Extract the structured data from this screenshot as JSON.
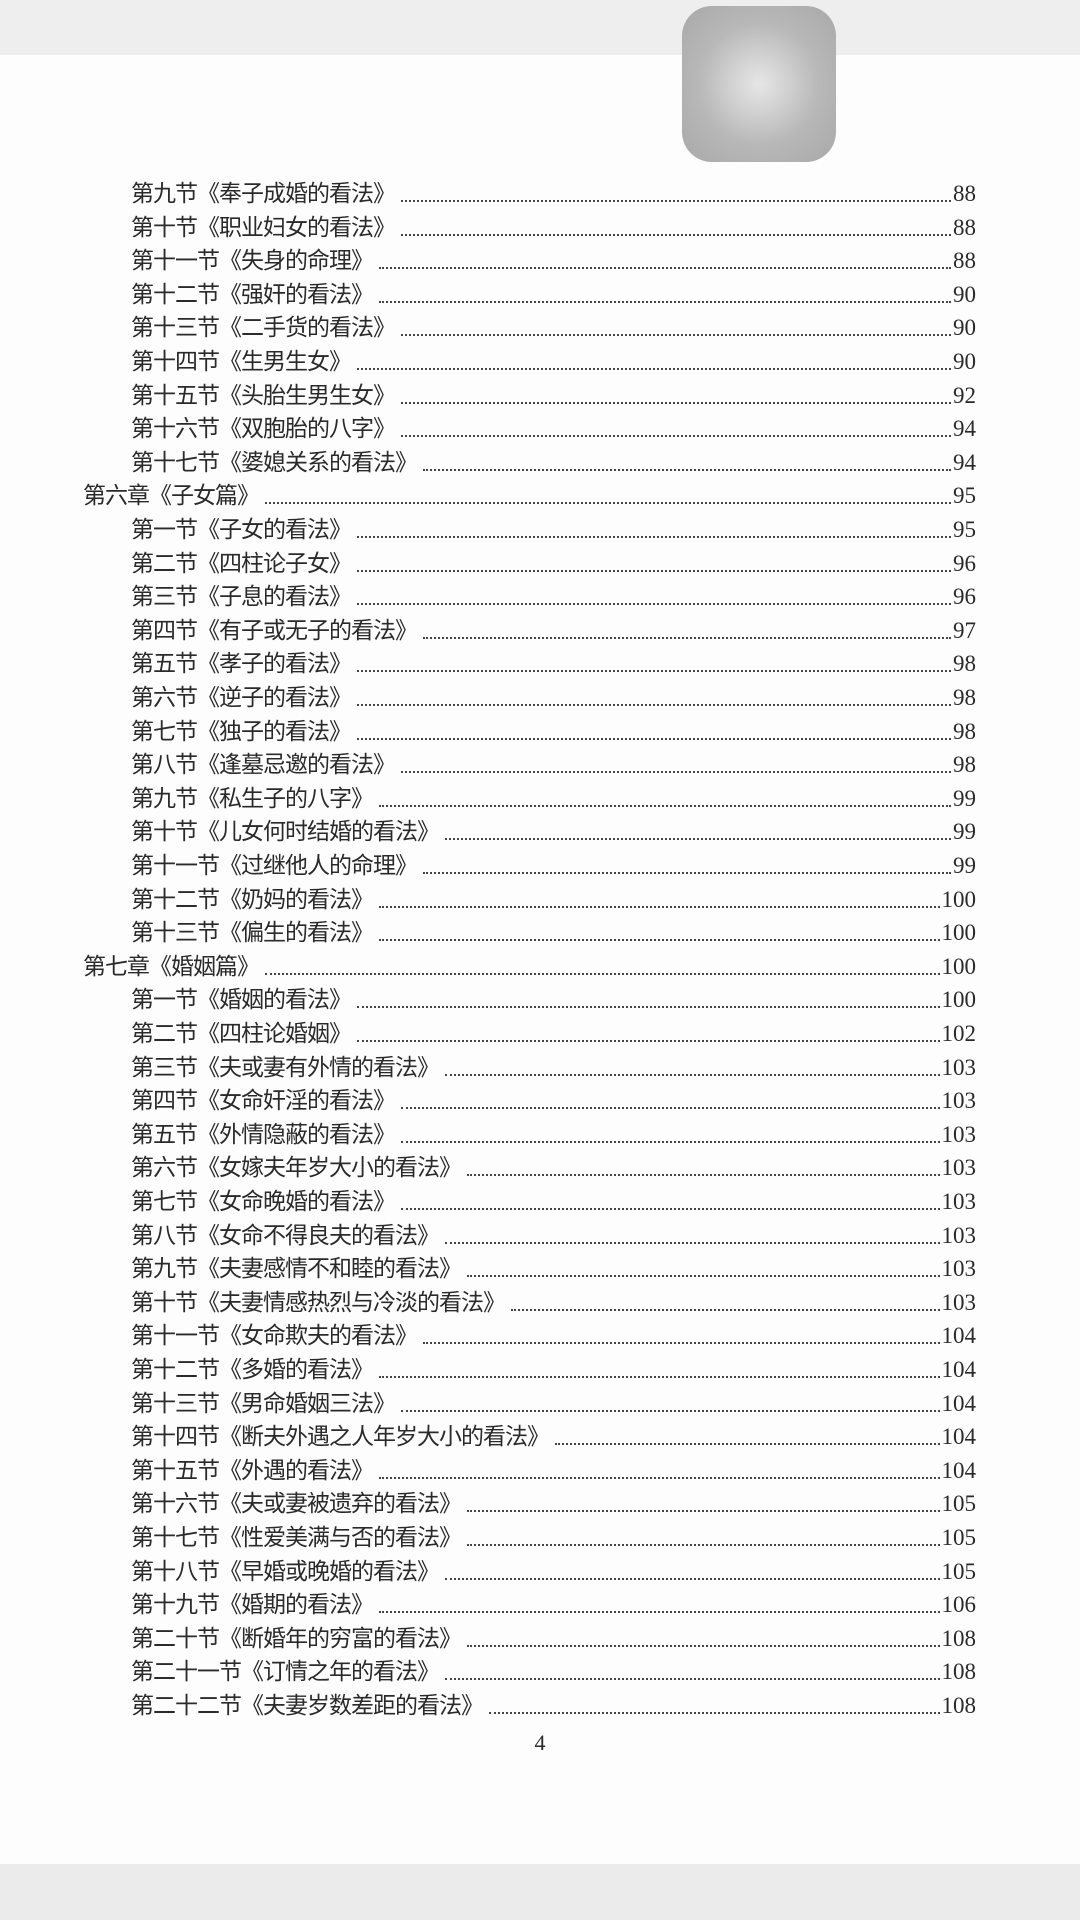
{
  "toc": [
    {
      "level": "section",
      "title": "第九节《奉子成婚的看法》",
      "page": "88"
    },
    {
      "level": "section",
      "title": "第十节《职业妇女的看法》",
      "page": "88"
    },
    {
      "level": "section",
      "title": "第十一节《失身的命理》",
      "page": "88"
    },
    {
      "level": "section",
      "title": "第十二节《强奸的看法》",
      "page": "90"
    },
    {
      "level": "section",
      "title": "第十三节《二手货的看法》",
      "page": "90"
    },
    {
      "level": "section",
      "title": "第十四节《生男生女》",
      "page": "90"
    },
    {
      "level": "section",
      "title": "第十五节《头胎生男生女》",
      "page": "92"
    },
    {
      "level": "section",
      "title": "第十六节《双胞胎的八字》",
      "page": "94"
    },
    {
      "level": "section",
      "title": "第十七节《婆媳关系的看法》",
      "page": "94"
    },
    {
      "level": "chapter",
      "title": "第六章《子女篇》",
      "page": "95"
    },
    {
      "level": "section",
      "title": "第一节《子女的看法》",
      "page": "95"
    },
    {
      "level": "section",
      "title": "第二节《四柱论子女》",
      "page": "96"
    },
    {
      "level": "section",
      "title": "第三节《子息的看法》",
      "page": "96"
    },
    {
      "level": "section",
      "title": "第四节《有子或无子的看法》",
      "page": "97"
    },
    {
      "level": "section",
      "title": "第五节《孝子的看法》",
      "page": "98"
    },
    {
      "level": "section",
      "title": "第六节《逆子的看法》",
      "page": "98"
    },
    {
      "level": "section",
      "title": "第七节《独子的看法》",
      "page": "98"
    },
    {
      "level": "section",
      "title": "第八节《逢墓忌邀的看法》",
      "page": "98"
    },
    {
      "level": "section",
      "title": "第九节《私生子的八字》",
      "page": "99"
    },
    {
      "level": "section",
      "title": "第十节《儿女何时结婚的看法》",
      "page": "99"
    },
    {
      "level": "section",
      "title": "第十一节《过继他人的命理》",
      "page": "99"
    },
    {
      "level": "section",
      "title": "第十二节《奶妈的看法》",
      "page": "100"
    },
    {
      "level": "section",
      "title": "第十三节《偏生的看法》",
      "page": "100"
    },
    {
      "level": "chapter",
      "title": "第七章《婚姻篇》",
      "page": "100"
    },
    {
      "level": "section",
      "title": "第一节《婚姻的看法》",
      "page": "100"
    },
    {
      "level": "section",
      "title": "第二节《四柱论婚姻》",
      "page": "102"
    },
    {
      "level": "section",
      "title": "第三节《夫或妻有外情的看法》",
      "page": "103"
    },
    {
      "level": "section",
      "title": "第四节《女命奸淫的看法》",
      "page": "103"
    },
    {
      "level": "section",
      "title": "第五节《外情隐蔽的看法》",
      "page": "103"
    },
    {
      "level": "section",
      "title": "第六节《女嫁夫年岁大小的看法》",
      "page": "103"
    },
    {
      "level": "section",
      "title": "第七节《女命晚婚的看法》",
      "page": "103"
    },
    {
      "level": "section",
      "title": "第八节《女命不得良夫的看法》",
      "page": "103"
    },
    {
      "level": "section",
      "title": "第九节《夫妻感情不和睦的看法》",
      "page": "103"
    },
    {
      "level": "section",
      "title": "第十节《夫妻情感热烈与冷淡的看法》",
      "page": "103"
    },
    {
      "level": "section",
      "title": "第十一节《女命欺夫的看法》",
      "page": "104"
    },
    {
      "level": "section",
      "title": "第十二节《多婚的看法》",
      "page": "104"
    },
    {
      "level": "section",
      "title": "第十三节《男命婚姻三法》",
      "page": "104"
    },
    {
      "level": "section",
      "title": "第十四节《断夫外遇之人年岁大小的看法》",
      "page": "104"
    },
    {
      "level": "section",
      "title": "第十五节《外遇的看法》",
      "page": "104"
    },
    {
      "level": "section",
      "title": "第十六节《夫或妻被遗弃的看法》",
      "page": "105"
    },
    {
      "level": "section",
      "title": "第十七节《性爱美满与否的看法》",
      "page": "105"
    },
    {
      "level": "section",
      "title": "第十八节《早婚或晚婚的看法》",
      "page": "105"
    },
    {
      "level": "section",
      "title": "第十九节《婚期的看法》",
      "page": "106"
    },
    {
      "level": "section",
      "title": "第二十节《断婚年的穷富的看法》",
      "page": "108"
    },
    {
      "level": "section",
      "title": "第二十一节《订情之年的看法》",
      "page": "108"
    },
    {
      "level": "section",
      "title": "第二十二节《夫妻岁数差距的看法》",
      "page": "108"
    }
  ],
  "footer": {
    "page_number": "4"
  },
  "overlay": {
    "icon": "floating-assistive-button-icon"
  }
}
